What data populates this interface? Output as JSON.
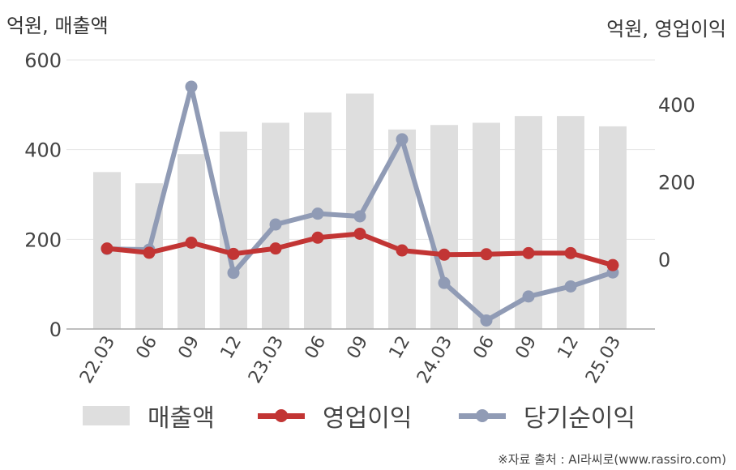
{
  "left_axis_unit": "억원, 매출액",
  "right_axis_unit": "억원, 영업이익",
  "source": "※자료 출처 : AI라씨로(www.rassiro.com)",
  "colors": {
    "revenue": "#dedede",
    "op_profit": "#c23534",
    "net_income": "#909bb5",
    "grid": "#e6e6e6",
    "axis": "#aaaaaa"
  },
  "chart_data": {
    "type": "bar",
    "categories": [
      "22.03",
      "06",
      "09",
      "12",
      "23.03",
      "06",
      "09",
      "12",
      "24.03",
      "06",
      "09",
      "12",
      "25.03"
    ],
    "y_left": {
      "ticks": [
        0,
        200,
        400,
        600
      ],
      "ylim": [
        0,
        600
      ]
    },
    "y_right": {
      "ticks": [
        0,
        200,
        400
      ],
      "ylim": [
        -180,
        515
      ]
    },
    "grid": true,
    "legend_position": "bottom",
    "series": [
      {
        "name": "매출액",
        "type": "bar",
        "axis": "left",
        "values": [
          350,
          325,
          390,
          440,
          460,
          483,
          525,
          445,
          455,
          460,
          475,
          475,
          452
        ]
      },
      {
        "name": "영업이익",
        "type": "line",
        "axis": "right",
        "values": [
          28,
          17,
          43,
          14,
          28,
          56,
          66,
          23,
          12,
          13,
          16,
          16,
          -15
        ]
      },
      {
        "name": "당기순이익",
        "type": "line",
        "axis": "right",
        "values": [
          27,
          25,
          446,
          -35,
          90,
          118,
          111,
          310,
          -61,
          -158,
          -96,
          -70,
          -34
        ]
      }
    ]
  }
}
